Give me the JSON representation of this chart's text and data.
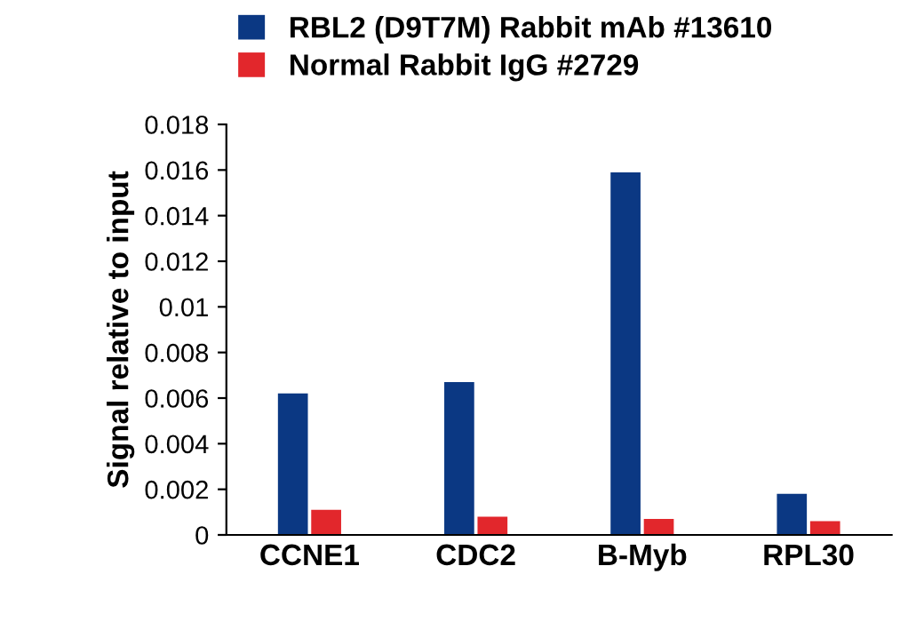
{
  "chart_data": {
    "type": "bar",
    "ylabel": "Signal relative to input",
    "categories": [
      "CCNE1",
      "CDC2",
      "B-Myb",
      "RPL30"
    ],
    "series": [
      {
        "name": "RBL2 (D9T7M) Rabbit mAb #13610",
        "color": "#0b3883",
        "values": [
          0.0062,
          0.0067,
          0.0159,
          0.0018
        ]
      },
      {
        "name": "Normal Rabbit IgG #2729",
        "color": "#e2272c",
        "values": [
          0.0011,
          0.0008,
          0.0007,
          0.0006
        ]
      }
    ],
    "ylim": [
      0,
      0.018
    ],
    "yticks": [
      0,
      0.002,
      0.004,
      0.006,
      0.008,
      0.01,
      0.012,
      0.014,
      0.016,
      0.018
    ],
    "grid": false,
    "legend": "top left"
  }
}
